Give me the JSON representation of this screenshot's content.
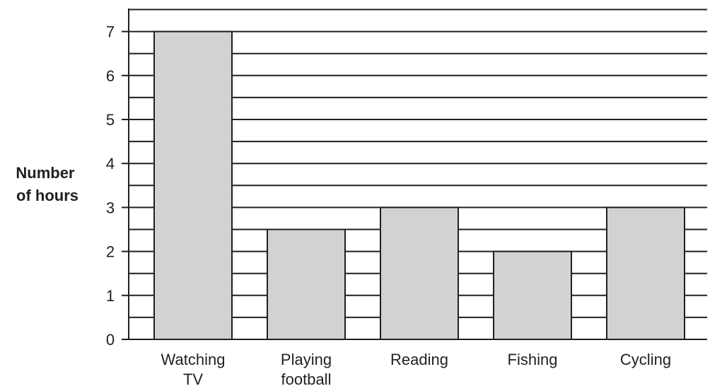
{
  "chart_data": {
    "type": "bar",
    "categories": [
      [
        "Watching",
        "TV"
      ],
      [
        "Playing",
        "football"
      ],
      [
        "Reading"
      ],
      [
        "Fishing"
      ],
      [
        "Cycling"
      ]
    ],
    "values": [
      7,
      2.5,
      3,
      2,
      3
    ],
    "ylabel": [
      "Number",
      "of hours"
    ],
    "xlabel": "",
    "title": "",
    "ylim": [
      0,
      7.5
    ],
    "yticks": [
      0,
      1,
      2,
      3,
      4,
      5,
      6,
      7
    ],
    "minor_gridline_step": 0.5,
    "grid": true,
    "legend": "none",
    "colors": {
      "bar_fill": "#d1d2d4",
      "bar_stroke": "#231f20",
      "grid": "#231f20"
    }
  }
}
